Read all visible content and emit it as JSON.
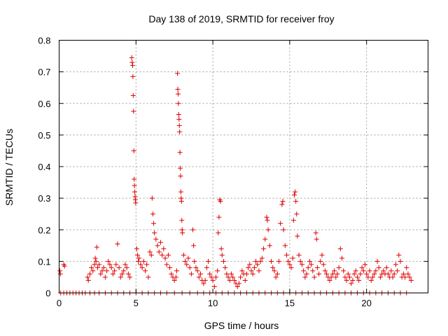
{
  "chart_data": {
    "type": "scatter",
    "title": "Day 138 of 2019, SRMTID for receiver froy",
    "xlabel": "GPS time / hours",
    "ylabel": "SRMTID / TECUs",
    "xlim": [
      0,
      24
    ],
    "ylim": [
      0,
      0.8
    ],
    "xticks": [
      0,
      5,
      10,
      15,
      20
    ],
    "yticks": [
      0,
      0.1,
      0.2,
      0.3,
      0.4,
      0.5,
      0.6,
      0.7,
      0.8
    ],
    "xtick_labels": [
      "0",
      "5",
      "10",
      "15",
      "20"
    ],
    "ytick_labels": [
      "0",
      "0.1",
      "0.2",
      "0.3",
      "0.4",
      "0.5",
      "0.6",
      "0.7",
      "0.8"
    ],
    "grid": true,
    "marker": "+",
    "color": "#e00000",
    "series": [
      {
        "name": "SRMTID",
        "points": [
          [
            0.05,
            0.07
          ],
          [
            0.08,
            0.06
          ],
          [
            0.3,
            0.09
          ],
          [
            0.35,
            0.085
          ],
          [
            0.1,
            0
          ],
          [
            0.3,
            0
          ],
          [
            0.5,
            0
          ],
          [
            0.7,
            0
          ],
          [
            0.9,
            0
          ],
          [
            1.1,
            0
          ],
          [
            1.3,
            0
          ],
          [
            1.5,
            0
          ],
          [
            1.7,
            0
          ],
          [
            1.85,
            0.05
          ],
          [
            1.9,
            0.04
          ],
          [
            2.0,
            0.06
          ],
          [
            2.1,
            0.08
          ],
          [
            2.2,
            0.07
          ],
          [
            2.3,
            0.09
          ],
          [
            2.35,
            0.11
          ],
          [
            2.4,
            0.1
          ],
          [
            2.45,
            0.145
          ],
          [
            2.5,
            0.08
          ],
          [
            2.6,
            0.09
          ],
          [
            2.7,
            0.06
          ],
          [
            2.8,
            0.07
          ],
          [
            2.9,
            0.08
          ],
          [
            3.0,
            0.05
          ],
          [
            3.1,
            0.07
          ],
          [
            3.2,
            0.1
          ],
          [
            3.3,
            0.09
          ],
          [
            3.4,
            0.08
          ],
          [
            3.5,
            0.06
          ],
          [
            3.6,
            0.07
          ],
          [
            3.7,
            0.09
          ],
          [
            3.8,
            0.155
          ],
          [
            3.9,
            0.08
          ],
          [
            4.0,
            0.05
          ],
          [
            4.1,
            0.06
          ],
          [
            4.2,
            0.07
          ],
          [
            4.3,
            0.09
          ],
          [
            4.4,
            0.08
          ],
          [
            4.5,
            0.06
          ],
          [
            4.6,
            0.05
          ],
          [
            4.72,
            0.745
          ],
          [
            4.75,
            0.73
          ],
          [
            4.78,
            0.72
          ],
          [
            4.8,
            0.685
          ],
          [
            4.82,
            0.625
          ],
          [
            4.84,
            0.575
          ],
          [
            4.86,
            0.45
          ],
          [
            4.88,
            0.36
          ],
          [
            4.9,
            0.34
          ],
          [
            4.92,
            0.32
          ],
          [
            4.94,
            0.305
          ],
          [
            4.96,
            0.295
          ],
          [
            4.98,
            0.285
          ],
          [
            5.05,
            0.14
          ],
          [
            5.1,
            0.12
          ],
          [
            5.15,
            0.1
          ],
          [
            5.2,
            0.11
          ],
          [
            5.3,
            0.09
          ],
          [
            5.4,
            0.08
          ],
          [
            5.5,
            0.1
          ],
          [
            5.6,
            0.07
          ],
          [
            5.7,
            0.09
          ],
          [
            5.8,
            0.05
          ],
          [
            5.9,
            0.13
          ],
          [
            6.0,
            0.12
          ],
          [
            6.05,
            0.3
          ],
          [
            6.1,
            0.25
          ],
          [
            6.15,
            0.22
          ],
          [
            6.2,
            0.19
          ],
          [
            6.3,
            0.17
          ],
          [
            6.4,
            0.15
          ],
          [
            6.5,
            0.13
          ],
          [
            6.6,
            0.16
          ],
          [
            6.7,
            0.12
          ],
          [
            6.8,
            0.14
          ],
          [
            6.9,
            0.11
          ],
          [
            7.0,
            0.09
          ],
          [
            7.1,
            0.12
          ],
          [
            7.2,
            0.08
          ],
          [
            7.3,
            0.06
          ],
          [
            7.4,
            0.05
          ],
          [
            7.5,
            0.04
          ],
          [
            7.6,
            0.05
          ],
          [
            7.65,
            0.07
          ],
          [
            7.7,
            0.695
          ],
          [
            7.72,
            0.645
          ],
          [
            7.74,
            0.63
          ],
          [
            7.76,
            0.6
          ],
          [
            7.78,
            0.565
          ],
          [
            7.8,
            0.55
          ],
          [
            7.82,
            0.53
          ],
          [
            7.84,
            0.51
          ],
          [
            7.86,
            0.445
          ],
          [
            7.88,
            0.395
          ],
          [
            7.9,
            0.37
          ],
          [
            7.92,
            0.32
          ],
          [
            7.94,
            0.3
          ],
          [
            7.96,
            0.29
          ],
          [
            7.98,
            0.23
          ],
          [
            8.0,
            0.2
          ],
          [
            8.02,
            0.19
          ],
          [
            8.1,
            0.12
          ],
          [
            8.2,
            0.1
          ],
          [
            8.3,
            0.09
          ],
          [
            8.4,
            0.11
          ],
          [
            8.5,
            0.08
          ],
          [
            8.6,
            0.06
          ],
          [
            8.7,
            0.2
          ],
          [
            8.75,
            0.15
          ],
          [
            8.8,
            0.1
          ],
          [
            8.9,
            0.08
          ],
          [
            9.0,
            0.07
          ],
          [
            9.1,
            0.05
          ],
          [
            9.2,
            0.06
          ],
          [
            9.3,
            0.04
          ],
          [
            9.4,
            0.03
          ],
          [
            9.5,
            0.04
          ],
          [
            9.6,
            0.08
          ],
          [
            9.7,
            0.1
          ],
          [
            9.8,
            0.06
          ],
          [
            9.9,
            0.05
          ],
          [
            10.0,
            0.04
          ],
          [
            10.1,
            0.02
          ],
          [
            10.2,
            0.05
          ],
          [
            10.3,
            0.07
          ],
          [
            10.35,
            0.19
          ],
          [
            10.4,
            0.24
          ],
          [
            10.45,
            0.295
          ],
          [
            10.5,
            0.29
          ],
          [
            10.55,
            0.14
          ],
          [
            10.6,
            0.12
          ],
          [
            10.7,
            0.1
          ],
          [
            10.8,
            0.08
          ],
          [
            10.9,
            0.06
          ],
          [
            11.0,
            0.05
          ],
          [
            11.1,
            0.04
          ],
          [
            11.2,
            0.06
          ],
          [
            11.3,
            0.05
          ],
          [
            11.4,
            0.04
          ],
          [
            11.5,
            0.03
          ],
          [
            11.6,
            0.02
          ],
          [
            11.7,
            0.03
          ],
          [
            11.8,
            0.05
          ],
          [
            11.9,
            0.07
          ],
          [
            12.0,
            0.06
          ],
          [
            12.1,
            0.04
          ],
          [
            12.2,
            0.06
          ],
          [
            12.3,
            0.08
          ],
          [
            12.4,
            0.09
          ],
          [
            12.5,
            0.07
          ],
          [
            12.6,
            0.06
          ],
          [
            12.7,
            0.08
          ],
          [
            12.8,
            0.1
          ],
          [
            12.9,
            0.09
          ],
          [
            13.0,
            0.07
          ],
          [
            13.1,
            0.1
          ],
          [
            13.2,
            0.11
          ],
          [
            13.3,
            0.14
          ],
          [
            13.4,
            0.17
          ],
          [
            13.5,
            0.24
          ],
          [
            13.55,
            0.23
          ],
          [
            13.6,
            0.2
          ],
          [
            13.7,
            0.15
          ],
          [
            13.8,
            0.1
          ],
          [
            13.9,
            0.08
          ],
          [
            14.0,
            0.07
          ],
          [
            14.1,
            0.05
          ],
          [
            14.2,
            0.06
          ],
          [
            14.3,
            0.1
          ],
          [
            14.4,
            0.22
          ],
          [
            14.5,
            0.28
          ],
          [
            14.55,
            0.29
          ],
          [
            14.6,
            0.2
          ],
          [
            14.7,
            0.15
          ],
          [
            14.8,
            0.12
          ],
          [
            14.9,
            0.1
          ],
          [
            15.0,
            0.09
          ],
          [
            15.1,
            0.08
          ],
          [
            15.2,
            0.11
          ],
          [
            15.25,
            0.23
          ],
          [
            15.3,
            0.31
          ],
          [
            15.35,
            0.32
          ],
          [
            15.4,
            0.29
          ],
          [
            15.45,
            0.25
          ],
          [
            15.5,
            0.18
          ],
          [
            15.6,
            0.12
          ],
          [
            15.7,
            0.1
          ],
          [
            15.8,
            0.09
          ],
          [
            15.9,
            0.07
          ],
          [
            16.0,
            0.05
          ],
          [
            16.1,
            0.06
          ],
          [
            16.2,
            0.08
          ],
          [
            16.3,
            0.1
          ],
          [
            16.4,
            0.09
          ],
          [
            16.5,
            0.07
          ],
          [
            16.6,
            0.05
          ],
          [
            16.7,
            0.19
          ],
          [
            16.75,
            0.17
          ],
          [
            16.8,
            0.08
          ],
          [
            16.9,
            0.06
          ],
          [
            17.0,
            0.1
          ],
          [
            17.1,
            0.12
          ],
          [
            17.2,
            0.09
          ],
          [
            17.3,
            0.07
          ],
          [
            17.4,
            0.06
          ],
          [
            17.5,
            0.05
          ],
          [
            17.6,
            0.04
          ],
          [
            17.7,
            0.05
          ],
          [
            17.8,
            0.06
          ],
          [
            17.9,
            0.07
          ],
          [
            18.0,
            0.05
          ],
          [
            18.1,
            0.06
          ],
          [
            18.2,
            0.08
          ],
          [
            18.3,
            0.14
          ],
          [
            18.4,
            0.11
          ],
          [
            18.5,
            0.07
          ],
          [
            18.6,
            0.05
          ],
          [
            18.7,
            0.04
          ],
          [
            18.8,
            0.06
          ],
          [
            18.9,
            0.05
          ],
          [
            19.0,
            0.03
          ],
          [
            19.1,
            0.04
          ],
          [
            19.2,
            0.06
          ],
          [
            19.3,
            0.07
          ],
          [
            19.4,
            0.05
          ],
          [
            19.5,
            0.04
          ],
          [
            19.6,
            0.06
          ],
          [
            19.7,
            0.08
          ],
          [
            19.8,
            0.07
          ],
          [
            19.9,
            0.09
          ],
          [
            20.0,
            0.06
          ],
          [
            20.1,
            0.05
          ],
          [
            20.2,
            0.07
          ],
          [
            20.3,
            0.04
          ],
          [
            20.4,
            0.05
          ],
          [
            20.5,
            0.06
          ],
          [
            20.6,
            0.07
          ],
          [
            20.7,
            0.1
          ],
          [
            20.8,
            0.08
          ],
          [
            20.9,
            0.05
          ],
          [
            21.0,
            0.06
          ],
          [
            21.1,
            0.07
          ],
          [
            21.2,
            0.06
          ],
          [
            21.3,
            0.08
          ],
          [
            21.4,
            0.06
          ],
          [
            21.5,
            0.05
          ],
          [
            21.6,
            0.07
          ],
          [
            21.7,
            0.05
          ],
          [
            21.8,
            0.06
          ],
          [
            21.9,
            0.09
          ],
          [
            22.0,
            0.07
          ],
          [
            22.1,
            0.12
          ],
          [
            22.2,
            0.1
          ],
          [
            22.3,
            0.05
          ],
          [
            22.4,
            0.06
          ],
          [
            22.5,
            0.05
          ],
          [
            22.6,
            0.08
          ],
          [
            22.7,
            0.06
          ],
          [
            22.8,
            0.05
          ],
          [
            22.9,
            0.04
          ],
          [
            2.0,
            0
          ],
          [
            2.3,
            0
          ],
          [
            2.6,
            0
          ],
          [
            3.0,
            0
          ],
          [
            3.4,
            0
          ],
          [
            3.8,
            0
          ],
          [
            4.2,
            0
          ],
          [
            4.6,
            0
          ],
          [
            5.0,
            0
          ],
          [
            5.4,
            0
          ],
          [
            5.8,
            0
          ],
          [
            6.2,
            0
          ],
          [
            6.6,
            0
          ],
          [
            7.0,
            0
          ],
          [
            7.5,
            0
          ],
          [
            8.0,
            0
          ],
          [
            8.5,
            0
          ],
          [
            9.0,
            0
          ],
          [
            9.4,
            0
          ],
          [
            9.8,
            0
          ],
          [
            10.2,
            0
          ],
          [
            10.6,
            0
          ],
          [
            11.0,
            0
          ],
          [
            11.4,
            0
          ],
          [
            11.8,
            0
          ],
          [
            12.2,
            0
          ],
          [
            12.6,
            0
          ],
          [
            13.0,
            0
          ],
          [
            13.4,
            0
          ],
          [
            13.8,
            0
          ],
          [
            14.2,
            0
          ],
          [
            14.6,
            0
          ],
          [
            15.0,
            0
          ],
          [
            15.4,
            0
          ],
          [
            15.8,
            0
          ],
          [
            16.2,
            0
          ],
          [
            16.6,
            0
          ],
          [
            17.0,
            0
          ],
          [
            17.4,
            0
          ],
          [
            17.8,
            0
          ],
          [
            18.2,
            0
          ],
          [
            18.6,
            0
          ],
          [
            19.0,
            0
          ],
          [
            19.4,
            0
          ],
          [
            19.8,
            0
          ],
          [
            20.2,
            0
          ],
          [
            20.6,
            0
          ],
          [
            21.0,
            0
          ],
          [
            21.4,
            0
          ],
          [
            21.8,
            0
          ],
          [
            22.2,
            0
          ],
          [
            22.6,
            0
          ]
        ]
      }
    ]
  }
}
